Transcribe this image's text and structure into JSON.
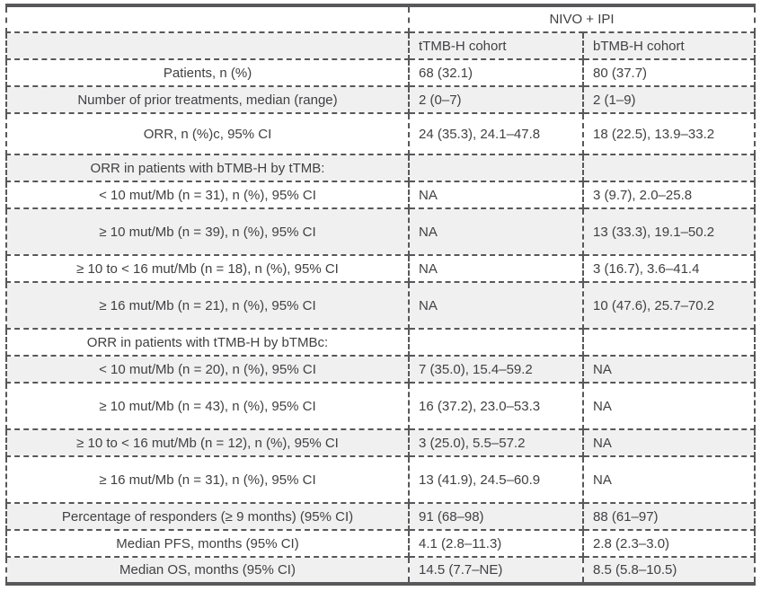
{
  "chart_data": {
    "type": "table",
    "group_header": "NIVO + IPI",
    "columns": [
      "tTMB-H cohort",
      "bTMB-H cohort"
    ],
    "rows": [
      {
        "label": "Patients, n (%)",
        "t": "68 (32.1)",
        "b": "80 (37.7)"
      },
      {
        "label": "Number of prior treatments, median (range)",
        "t": "2 (0–7)",
        "b": "2 (1–9)"
      },
      {
        "label": "ORR, n (%)c, 95% CI",
        "t": "24 (35.3), 24.1–47.8",
        "b": "18 (22.5), 13.9–33.2"
      },
      {
        "label": "ORR in patients with bTMB-H by tTMB:",
        "t": "",
        "b": ""
      },
      {
        "label": "< 10 mut/Mb (n = 31), n (%), 95% CI",
        "t": "NA",
        "b": "3 (9.7), 2.0–25.8"
      },
      {
        "label": "≥ 10 mut/Mb (n = 39), n (%), 95% CI",
        "t": "NA",
        "b": "13 (33.3), 19.1–50.2"
      },
      {
        "label": "≥ 10 to < 16 mut/Mb (n = 18), n (%), 95% CI",
        "t": "NA",
        "b": "3 (16.7), 3.6–41.4"
      },
      {
        "label": "≥ 16 mut/Mb (n = 21), n (%), 95% CI",
        "t": "NA",
        "b": "10 (47.6), 25.7–70.2"
      },
      {
        "label": "ORR in patients with tTMB-H by bTMBc:",
        "t": "",
        "b": ""
      },
      {
        "label": "< 10 mut/Mb (n = 20), n (%), 95% CI",
        "t": "7 (35.0), 15.4–59.2",
        "b": "NA"
      },
      {
        "label": "≥ 10 mut/Mb (n = 43), n (%), 95% CI",
        "t": "16 (37.2), 23.0–53.3",
        "b": "NA"
      },
      {
        "label": "≥ 10 to < 16 mut/Mb (n = 12), n (%), 95% CI",
        "t": "3 (25.0), 5.5–57.2",
        "b": "NA"
      },
      {
        "label": "≥ 16 mut/Mb (n = 31), n (%), 95% CI",
        "t": "13 (41.9), 24.5–60.9",
        "b": "NA"
      },
      {
        "label": "Percentage of responders (≥ 9 months) (95% CI)",
        "t": "91 (68–98)",
        "b": "88 (61–97)"
      },
      {
        "label": "Median PFS, months (95% CI)",
        "t": "4.1 (2.8–11.3)",
        "b": "2.8 (2.3–3.0)"
      },
      {
        "label": "Median OS, months (95% CI)",
        "t": "14.5 (7.7–NE)",
        "b": "8.5 (5.8–10.5)"
      }
    ]
  },
  "colors": {
    "border": "#58585a",
    "row_alt": "#f0f0f1",
    "text": "#414042",
    "background": "#ffffff"
  }
}
